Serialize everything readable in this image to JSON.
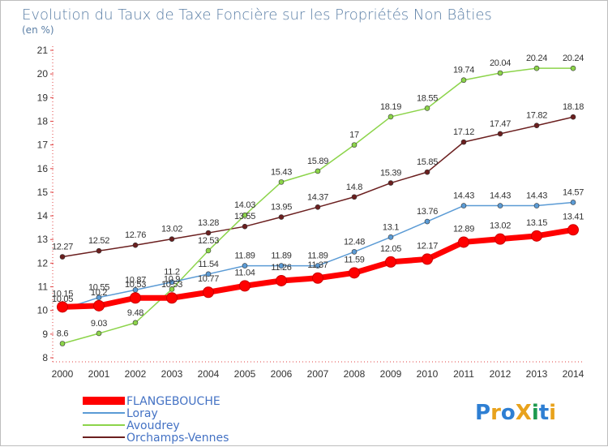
{
  "chart_data": {
    "type": "line",
    "title": "Evolution du Taux de Taxe Foncière sur les Propriétés Non Bâties",
    "subtitle": "(en %)",
    "x": [
      "2000",
      "2001",
      "2002",
      "2003",
      "2004",
      "2005",
      "2006",
      "2007",
      "2008",
      "2009",
      "2010",
      "2011",
      "2012",
      "2013",
      "2014"
    ],
    "ylim": [
      8,
      21
    ],
    "yticks": [
      "8",
      "9",
      "10",
      "11",
      "12",
      "13",
      "14",
      "15",
      "16",
      "17",
      "18",
      "19",
      "20",
      "21"
    ],
    "grid": false,
    "legend_position": "bottom-left",
    "series": [
      {
        "name": "FLANGEBOUCHE",
        "color": "#ff0000",
        "values": [
          10.15,
          10.2,
          10.53,
          10.53,
          10.77,
          11.04,
          11.26,
          11.37,
          11.59,
          12.05,
          12.17,
          12.89,
          13.02,
          13.15,
          13.41
        ]
      },
      {
        "name": "Loray",
        "color": "#5b9bd5",
        "values": [
          10.05,
          10.55,
          10.87,
          11.2,
          11.54,
          11.89,
          11.89,
          11.89,
          12.48,
          13.1,
          13.76,
          14.43,
          14.43,
          14.43,
          14.57
        ]
      },
      {
        "name": "Avoudrey",
        "color": "#8cd44a",
        "values": [
          8.6,
          9.03,
          9.48,
          10.9,
          12.53,
          14.03,
          15.43,
          15.89,
          17,
          18.19,
          18.55,
          19.74,
          20.04,
          20.24,
          20.24
        ]
      },
      {
        "name": "Orchamps-Vennes",
        "color": "#6b1f1f",
        "values": [
          12.27,
          12.52,
          12.76,
          13.02,
          13.28,
          13.55,
          13.95,
          14.37,
          14.8,
          15.39,
          15.85,
          17.12,
          17.47,
          17.82,
          18.18
        ]
      }
    ]
  },
  "labels": {
    "FLANGEBOUCHE": [
      "10.15",
      "10.2",
      "10.53",
      "10.53",
      "10.77",
      "11.04",
      "11.26",
      "11.37",
      "11.59",
      "12.05",
      "12.17",
      "12.89",
      "13.02",
      "13.15",
      "13.41"
    ],
    "Loray": [
      "10.05",
      "10.55",
      "10.87",
      "11.2",
      "11.54",
      "11.89",
      "11.89",
      "11.89",
      "12.48",
      "13.1",
      "13.76",
      "14.43",
      "14.43",
      "14.43",
      "14.57"
    ],
    "Avoudrey": [
      "8.6",
      "9.03",
      "9.48",
      "10.9",
      "12.53",
      "14.03",
      "15.43",
      "15.89",
      "17",
      "18.19",
      "18.55",
      "19.74",
      "20.04",
      "20.24",
      "20.24"
    ],
    "Orchamps-Vennes": [
      "12.27",
      "12.52",
      "12.76",
      "13.02",
      "13.28",
      "13.55",
      "13.95",
      "14.37",
      "14.8",
      "15.39",
      "15.85",
      "17.12",
      "17.47",
      "17.82",
      "18.18"
    ]
  },
  "logo": {
    "text": "ProXiti",
    "colors": [
      "#2e7fd3",
      "#e8a21c",
      "#2e7fd3",
      "#e8a21c",
      "#1d9a4e",
      "#2e7fd3",
      "#e8a21c"
    ]
  }
}
